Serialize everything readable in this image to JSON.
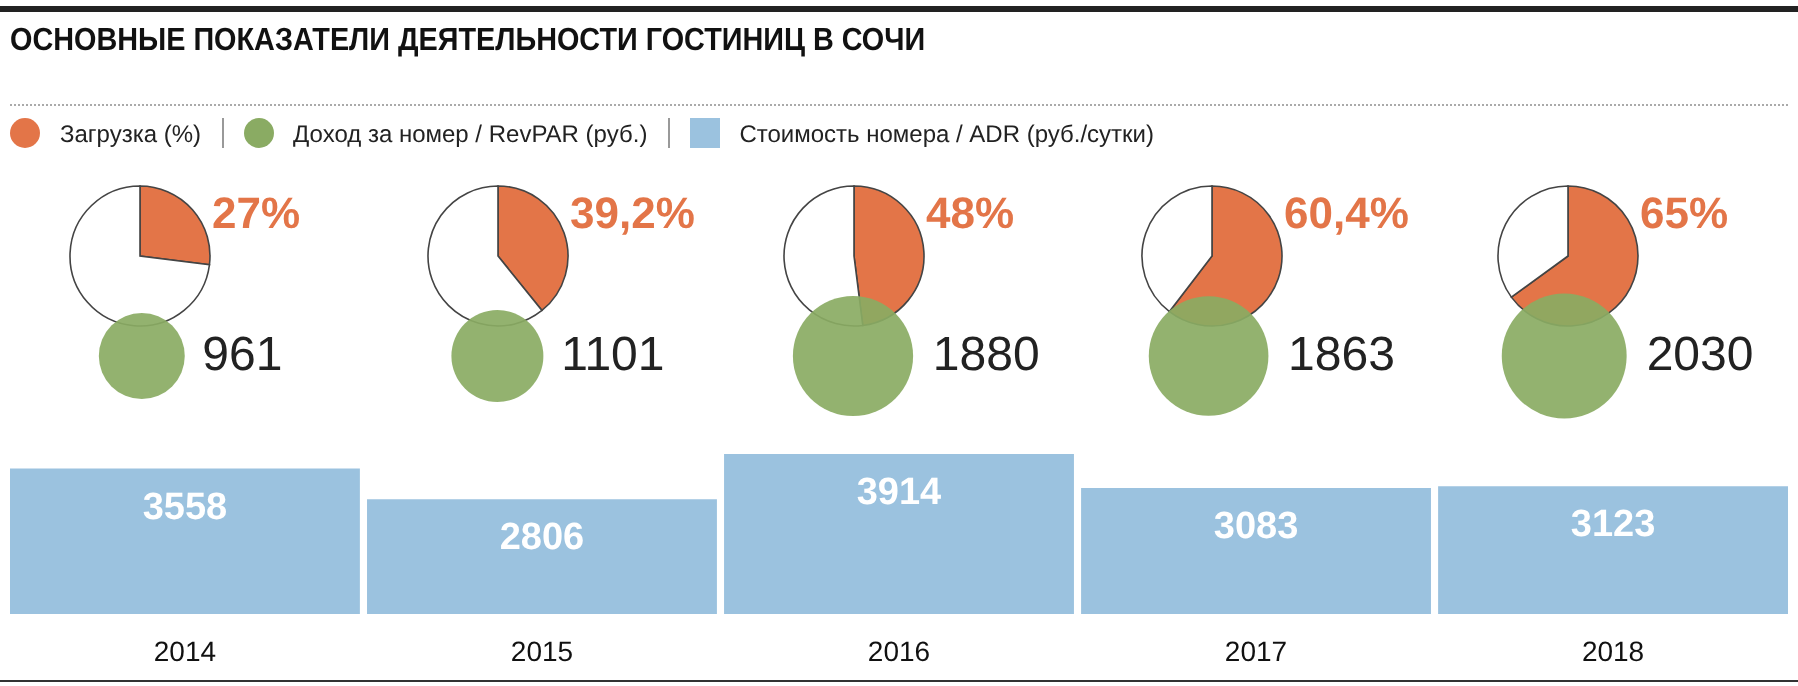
{
  "chart_data": [
    {
      "type": "pie",
      "title": "ОСНОВНЫЕ ПОКАЗАТЕЛИ ДЕЯТЕЛЬНОСТИ ГОСТИНИЦ В СОЧИ",
      "legend": "top left",
      "categories": [
        "Загрузка (%)",
        null
      ],
      "values": [
        27,
        73
      ],
      "colors": [
        "#e37548",
        "#ffffff"
      ],
      "value_labels": [
        "27%",
        null
      ]
    },
    {
      "type": "pie",
      "categories": [
        null,
        null
      ],
      "values": [
        39.2,
        60.8
      ],
      "colors": [
        "#e37548",
        "#ffffff"
      ],
      "value_labels": [
        "39,2%",
        null
      ]
    },
    {
      "type": "pie",
      "categories": [
        null,
        null
      ],
      "values": [
        48,
        52
      ],
      "colors": [
        "#e37548",
        "#ffffff"
      ],
      "value_labels": [
        "48%",
        null
      ]
    },
    {
      "type": "pie",
      "categories": [
        null,
        null
      ],
      "values": [
        60.4,
        39.6
      ],
      "colors": [
        "#e37548",
        "#ffffff"
      ],
      "value_labels": [
        "60,4%",
        null
      ]
    },
    {
      "type": "pie",
      "categories": [
        null,
        null
      ],
      "values": [
        65,
        35
      ],
      "colors": [
        "#e37548",
        "#ffffff"
      ],
      "value_labels": [
        "65%",
        null
      ]
    },
    {
      "type": "other",
      "legend": "top left",
      "data_labels": true,
      "categories": [
        null,
        null,
        null,
        null,
        null
      ],
      "series": [
        {
          "name": "Доход за номер / RevPAR (руб.)",
          "color": "#8aab63",
          "values": [
            961,
            1101,
            1880,
            1863,
            2030
          ]
        }
      ]
    },
    {
      "type": "bar",
      "legend": "top left",
      "data_labels": true,
      "categories": [
        "2014",
        "2015",
        "2016",
        "2017",
        "2018"
      ],
      "series": [
        {
          "name": "Стоимость номера / ADR (руб./сутки)",
          "color": "#9bc2df",
          "values": [
            3558,
            2806,
            3914,
            3083,
            3123
          ]
        }
      ]
    }
  ]
}
